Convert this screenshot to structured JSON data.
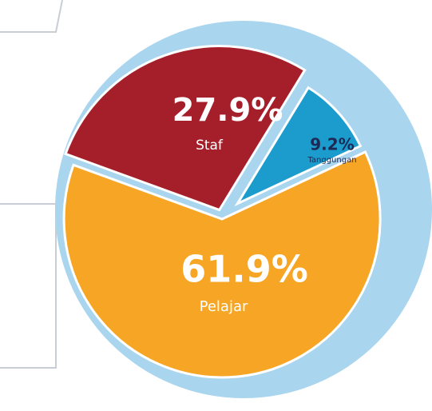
{
  "chart_data": {
    "type": "pie",
    "categories": [
      "Staf",
      "Tanggungan",
      "Pelajar"
    ],
    "values": [
      27.9,
      9.2,
      61.9
    ],
    "value_labels": [
      "27.9%",
      "9.2%",
      "61.9%"
    ],
    "colors": [
      "#a51f2a",
      "#1b9ccc",
      "#f6a524"
    ]
  }
}
